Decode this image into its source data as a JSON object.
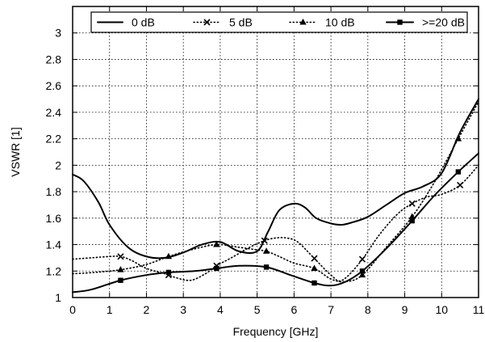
{
  "chart_data": {
    "type": "line",
    "xlabel": "Frequency [GHz]",
    "ylabel": "VSWR [1]",
    "xlim": [
      0,
      11
    ],
    "ylim": [
      1,
      3.2
    ],
    "xticks": [
      "0",
      "1",
      "2",
      "3",
      "4",
      "5",
      "6",
      "7",
      "8",
      "9",
      "10",
      "11"
    ],
    "yticks": [
      "1",
      "1.2",
      "1.4",
      "1.6",
      "1.8",
      "2",
      "2.2",
      "2.4",
      "2.6",
      "2.8",
      "3"
    ],
    "grid": true,
    "legend_position": "top",
    "series": [
      {
        "name": "0 dB",
        "style": "solid",
        "marker": "none",
        "x": [
          0,
          0.3,
          0.7,
          1.0,
          1.5,
          2.0,
          2.5,
          3.0,
          3.5,
          4.0,
          4.5,
          5.0,
          5.3,
          5.6,
          6.0,
          6.3,
          6.6,
          7.0,
          7.3,
          7.6,
          8.0,
          8.5,
          9.0,
          9.5,
          10.0,
          10.5,
          11.0
        ],
        "y": [
          1.93,
          1.88,
          1.72,
          1.55,
          1.38,
          1.31,
          1.3,
          1.34,
          1.4,
          1.42,
          1.35,
          1.35,
          1.5,
          1.66,
          1.71,
          1.68,
          1.6,
          1.56,
          1.55,
          1.57,
          1.61,
          1.7,
          1.79,
          1.84,
          1.94,
          2.25,
          2.5
        ]
      },
      {
        "name": "5 dB",
        "style": "dotted",
        "marker": "x",
        "x": [
          0,
          0.5,
          1.0,
          1.3,
          1.6,
          2.0,
          2.5,
          2.8,
          3.2,
          3.6,
          3.9,
          4.3,
          4.8,
          5.2,
          5.5,
          5.8,
          6.1,
          6.5,
          7.0,
          7.3,
          7.8,
          8.3,
          8.8,
          9.2,
          9.6,
          10.0,
          10.5,
          11.0
        ],
        "y": [
          1.29,
          1.3,
          1.31,
          1.31,
          1.28,
          1.22,
          1.18,
          1.15,
          1.13,
          1.18,
          1.24,
          1.3,
          1.38,
          1.43,
          1.45,
          1.45,
          1.42,
          1.31,
          1.17,
          1.13,
          1.27,
          1.47,
          1.63,
          1.71,
          1.76,
          1.78,
          1.85,
          2.0
        ]
      },
      {
        "name": "10 dB",
        "style": "dotted",
        "marker": "triangle",
        "x": [
          0,
          0.6,
          1.3,
          2.0,
          2.6,
          3.2,
          3.9,
          4.5,
          5.0,
          5.25,
          5.6,
          6.0,
          6.55,
          7.0,
          7.4,
          7.85,
          8.5,
          9.2,
          9.8,
          10.45,
          11.0
        ],
        "y": [
          1.18,
          1.19,
          1.21,
          1.25,
          1.31,
          1.36,
          1.4,
          1.38,
          1.36,
          1.35,
          1.31,
          1.26,
          1.22,
          1.14,
          1.12,
          1.17,
          1.38,
          1.61,
          1.87,
          2.2,
          2.48
        ]
      },
      {
        "name": ">=20 dB",
        "style": "solid",
        "marker": "square",
        "x": [
          0,
          0.5,
          1.3,
          2.0,
          2.6,
          3.3,
          3.9,
          4.5,
          5.25,
          5.9,
          6.55,
          7.0,
          7.4,
          7.85,
          8.5,
          9.2,
          9.8,
          10.45,
          11.0
        ],
        "y": [
          1.04,
          1.06,
          1.13,
          1.17,
          1.19,
          1.2,
          1.22,
          1.24,
          1.23,
          1.17,
          1.11,
          1.09,
          1.12,
          1.2,
          1.37,
          1.58,
          1.77,
          1.95,
          2.09
        ]
      }
    ]
  }
}
